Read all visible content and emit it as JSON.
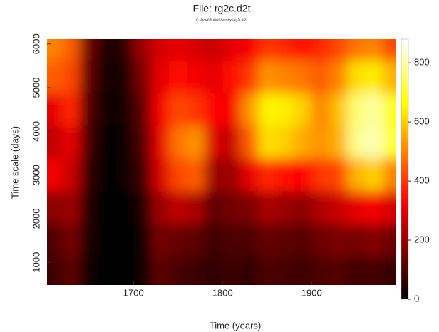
{
  "chart_data": {
    "type": "heatmap",
    "title": "File: rg2c.d2t",
    "subtitle": "C:\\Data\\Rudolf\\Surveys\\rg2c.d2t",
    "x_label": "Time (years)",
    "y_label": "Time scale (days)",
    "colormap": "hot",
    "x": [
      1610,
      1630,
      1650,
      1670,
      1690,
      1710,
      1730,
      1750,
      1770,
      1790,
      1810,
      1830,
      1850,
      1870,
      1890,
      1910,
      1930,
      1950,
      1970,
      1990
    ],
    "y": [
      750,
      1500,
      2250,
      3000,
      3750,
      4500,
      5250,
      6000
    ],
    "z": [
      [
        80,
        120,
        20,
        0,
        0,
        10,
        120,
        90,
        80,
        60,
        80,
        60,
        100,
        90,
        80,
        100,
        110,
        80,
        90,
        70
      ],
      [
        100,
        150,
        30,
        0,
        0,
        20,
        150,
        130,
        120,
        80,
        100,
        100,
        130,
        120,
        110,
        140,
        160,
        150,
        170,
        140
      ],
      [
        180,
        200,
        40,
        0,
        0,
        40,
        200,
        250,
        220,
        120,
        150,
        160,
        220,
        200,
        180,
        230,
        260,
        300,
        320,
        280
      ],
      [
        320,
        260,
        60,
        0,
        10,
        80,
        280,
        420,
        450,
        200,
        200,
        300,
        380,
        350,
        330,
        400,
        420,
        560,
        600,
        500
      ],
      [
        250,
        300,
        80,
        0,
        20,
        100,
        300,
        480,
        520,
        280,
        260,
        450,
        620,
        600,
        550,
        520,
        560,
        780,
        820,
        700
      ],
      [
        300,
        380,
        100,
        10,
        30,
        120,
        320,
        420,
        400,
        330,
        320,
        520,
        650,
        640,
        600,
        500,
        580,
        760,
        800,
        680
      ],
      [
        450,
        420,
        120,
        20,
        40,
        160,
        300,
        350,
        320,
        300,
        340,
        400,
        520,
        500,
        480,
        450,
        500,
        620,
        640,
        560
      ],
      [
        500,
        450,
        140,
        30,
        60,
        200,
        280,
        300,
        280,
        260,
        300,
        320,
        400,
        380,
        350,
        380,
        420,
        480,
        500,
        420
      ]
    ],
    "xlim": [
      1603,
      1995
    ],
    "ylim": [
      480,
      6110
    ],
    "xticks": [
      1700,
      1800,
      1900
    ],
    "yticks": [
      1000,
      2000,
      3000,
      4000,
      5000,
      6000
    ],
    "clim": [
      0,
      880
    ],
    "cticks": [
      0,
      200,
      400,
      600,
      800
    ]
  }
}
